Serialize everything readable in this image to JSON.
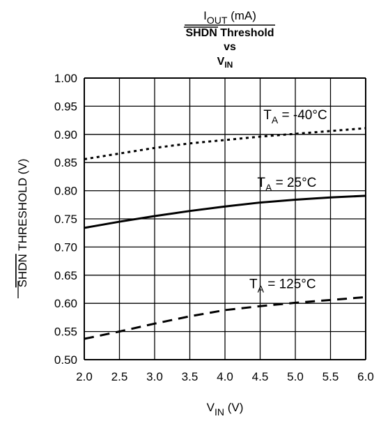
{
  "title": {
    "line1_main": "I",
    "line1_sub": "OUT",
    "line1_unit": " (mA)",
    "line2": "SHDN Threshold",
    "line3": "vs",
    "line4_main": "V",
    "line4_sub": "IN"
  },
  "chart_data": {
    "type": "line",
    "xlabel": {
      "main": "V",
      "sub": "IN",
      "unit": " (V)"
    },
    "ylabel": {
      "overline": "SHDN",
      "rest": " THRESHOLD (V)"
    },
    "xlim": [
      2.0,
      6.0
    ],
    "ylim": [
      0.5,
      1.0
    ],
    "grid": true,
    "x_ticks": [
      "2.0",
      "2.5",
      "3.0",
      "3.5",
      "4.0",
      "4.5",
      "5.0",
      "5.5",
      "6.0"
    ],
    "y_ticks": [
      "0.50",
      "0.55",
      "0.60",
      "0.65",
      "0.70",
      "0.75",
      "0.80",
      "0.85",
      "0.90",
      "0.95",
      "1.00"
    ],
    "x": [
      2.0,
      2.5,
      3.0,
      3.5,
      4.0,
      4.5,
      5.0,
      5.5,
      6.0
    ],
    "series": [
      {
        "name": "T_A = -40°C",
        "label_main": "T",
        "label_sub": "A",
        "label_rest": " = -40°C",
        "label_at": [
          5.0,
          0.927
        ],
        "style": "dotted",
        "values": [
          0.856,
          0.866,
          0.876,
          0.884,
          0.89,
          0.896,
          0.901,
          0.906,
          0.911
        ]
      },
      {
        "name": "T_A = 25°C",
        "label_main": "T",
        "label_sub": "A",
        "label_rest": " = 25°C",
        "label_at": [
          4.88,
          0.807
        ],
        "style": "solid",
        "values": [
          0.734,
          0.745,
          0.755,
          0.764,
          0.772,
          0.779,
          0.784,
          0.788,
          0.791
        ]
      },
      {
        "name": "T_A = 125°C",
        "label_main": "T",
        "label_sub": "A",
        "label_rest": " = 125°C",
        "label_at": [
          4.82,
          0.627
        ],
        "style": "dashed",
        "values": [
          0.537,
          0.55,
          0.564,
          0.577,
          0.588,
          0.595,
          0.601,
          0.606,
          0.611
        ]
      }
    ]
  }
}
